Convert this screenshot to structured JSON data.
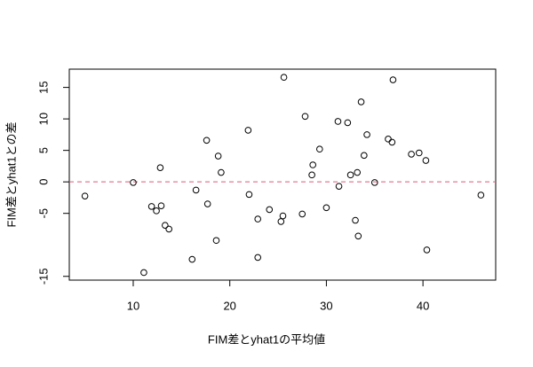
{
  "chart_data": {
    "type": "scatter",
    "xlabel": "FIM差とyhat1の平均値",
    "ylabel": "FIM差とyhat1との差",
    "xlim": [
      3.38,
      47.53
    ],
    "ylim": [
      -15.6,
      17.9
    ],
    "xticks": [
      10,
      20,
      30,
      40
    ],
    "yticks": [
      -15,
      -5,
      0,
      5,
      10,
      15
    ],
    "color": "#000000",
    "hline": 0,
    "hline_color": "#dc5a78",
    "x": [
      5.0,
      10.0,
      11.1,
      11.9,
      12.4,
      12.9,
      12.8,
      13.3,
      13.7,
      16.1,
      16.5,
      17.6,
      17.7,
      18.6,
      18.8,
      19.1,
      21.9,
      22.0,
      22.9,
      22.9,
      24.1,
      25.3,
      25.6,
      25.5,
      27.5,
      27.8,
      28.5,
      28.6,
      29.3,
      30.0,
      31.2,
      31.3,
      32.2,
      32.5,
      33.0,
      33.2,
      33.3,
      33.6,
      33.9,
      34.2,
      35.0,
      36.4,
      36.8,
      36.9,
      38.8,
      39.6,
      40.3,
      40.4,
      46.0
    ],
    "values": [
      -2.25,
      -0.1,
      -14.4,
      -3.9,
      -4.6,
      -3.8,
      2.25,
      -6.9,
      -7.5,
      -12.3,
      -1.3,
      6.6,
      -3.5,
      -9.3,
      4.1,
      1.5,
      8.2,
      -2.0,
      -5.9,
      -12.0,
      -4.4,
      -6.3,
      16.6,
      -5.4,
      -5.1,
      10.4,
      1.1,
      2.7,
      5.2,
      -4.1,
      9.6,
      -0.7,
      9.4,
      1.1,
      -6.1,
      1.5,
      -8.6,
      12.7,
      4.2,
      7.5,
      -0.1,
      6.8,
      6.3,
      16.2,
      4.4,
      4.6,
      3.4,
      -10.8,
      -2.1
    ]
  }
}
